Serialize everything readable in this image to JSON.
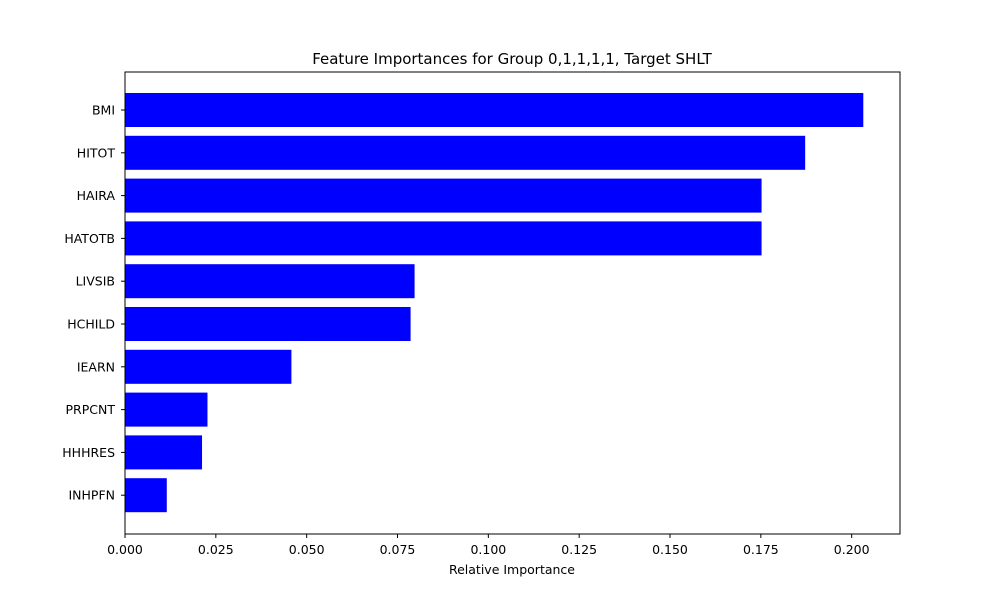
{
  "chart_data": {
    "type": "bar",
    "orientation": "horizontal",
    "title": "Feature Importances for Group 0,1,1,1,1, Target SHLT",
    "xlabel": "Relative Importance",
    "ylabel": "",
    "categories": [
      "BMI",
      "HITOT",
      "HAIRA",
      "HATOTB",
      "LIVSIB",
      "HCHILD",
      "IEARN",
      "PRPCNT",
      "HHHRES",
      "INHPFN"
    ],
    "values": [
      0.2032,
      0.1872,
      0.1752,
      0.1752,
      0.0797,
      0.0786,
      0.0458,
      0.0227,
      0.0212,
      0.0115
    ],
    "xlim": [
      0,
      0.2133
    ],
    "xticks": [
      "0.000",
      "0.025",
      "0.050",
      "0.075",
      "0.100",
      "0.125",
      "0.150",
      "0.175",
      "0.200"
    ],
    "bar_color": "#0000ff",
    "grid": false
  }
}
